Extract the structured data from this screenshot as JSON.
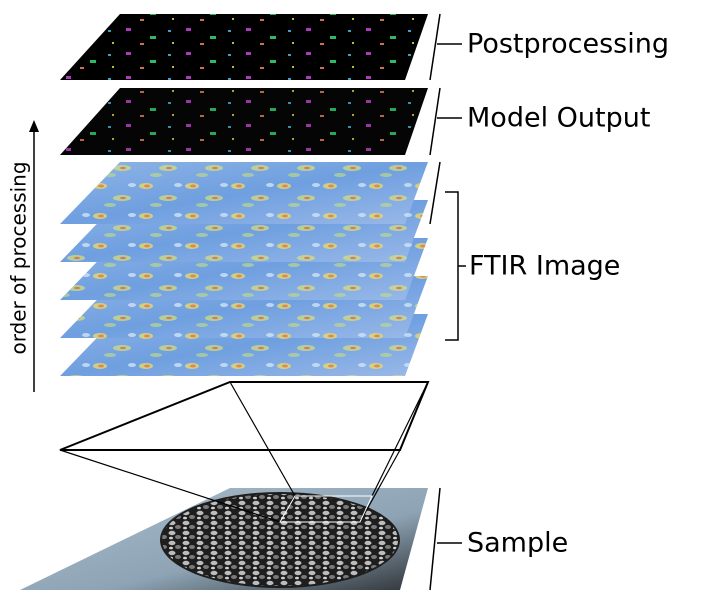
{
  "layers": [
    {
      "label": "Postprocessing"
    },
    {
      "label": "Model Output"
    },
    {
      "label": "FTIR Image"
    },
    {
      "label": "Sample"
    }
  ],
  "axis_label": "order of processing"
}
